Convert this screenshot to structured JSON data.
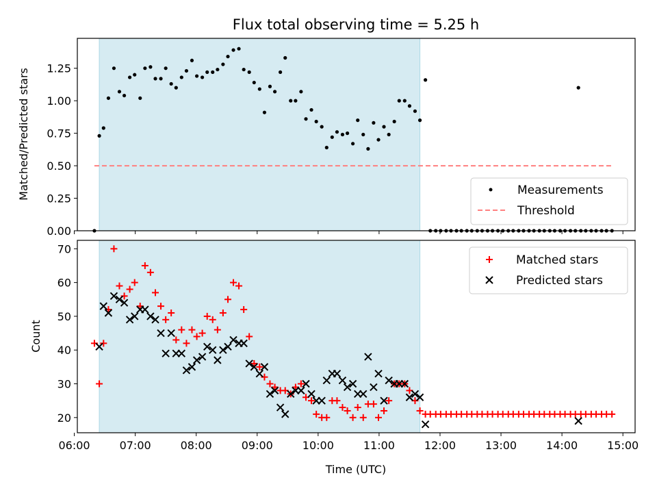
{
  "title": "Flux total observing time = 5.25 h",
  "colors": {
    "shade": "#add8e6",
    "measurement": "#000000",
    "threshold": "#ff7f7f",
    "matched": "#ff0000",
    "predicted": "#000000"
  },
  "chart_data": [
    {
      "type": "scatter",
      "ylabel": "Matched/Predicted stars",
      "xlim": [
        6.05,
        15.2
      ],
      "ylim": [
        0,
        1.48
      ],
      "yticks": [
        0.0,
        0.25,
        0.5,
        0.75,
        1.0,
        1.25
      ],
      "ytick_labels": [
        "0.00",
        "0.25",
        "0.50",
        "0.75",
        "1.00",
        "1.25"
      ],
      "shaded_interval": [
        6.41,
        11.67
      ],
      "legend": {
        "position": "lower right",
        "entries": [
          "Measurements",
          "Threshold"
        ]
      },
      "threshold": {
        "name": "Threshold",
        "y": 0.5,
        "x": [
          6.33,
          14.85
        ]
      },
      "series": [
        {
          "name": "Measurements",
          "x": [
            6.33,
            6.41,
            6.48,
            6.56,
            6.65,
            6.74,
            6.82,
            6.91,
            6.99,
            7.08,
            7.16,
            7.25,
            7.33,
            7.42,
            7.5,
            7.59,
            7.67,
            7.76,
            7.84,
            7.93,
            8.01,
            8.1,
            8.18,
            8.27,
            8.35,
            8.44,
            8.52,
            8.61,
            8.7,
            8.78,
            8.87,
            8.95,
            9.04,
            9.12,
            9.21,
            9.29,
            9.38,
            9.46,
            9.55,
            9.63,
            9.72,
            9.8,
            9.89,
            9.97,
            10.06,
            10.14,
            10.23,
            10.31,
            10.4,
            10.48,
            10.57,
            10.65,
            10.74,
            10.82,
            10.91,
            10.99,
            11.08,
            11.16,
            11.25,
            11.33,
            11.42,
            11.5,
            11.59,
            11.67,
            11.76,
            11.84,
            11.93,
            12.01,
            12.1,
            12.18,
            12.27,
            12.35,
            12.44,
            12.52,
            12.61,
            12.69,
            12.78,
            12.86,
            12.95,
            13.03,
            13.12,
            13.2,
            13.29,
            13.37,
            13.46,
            13.54,
            13.63,
            13.71,
            13.8,
            13.88,
            13.97,
            14.05,
            14.14,
            14.22,
            14.27,
            14.31,
            14.39,
            14.48,
            14.56,
            14.65,
            14.73,
            14.82
          ],
          "y": [
            0.0,
            0.73,
            0.79,
            1.02,
            1.25,
            1.07,
            1.04,
            1.18,
            1.2,
            1.02,
            1.25,
            1.26,
            1.17,
            1.17,
            1.25,
            1.13,
            1.1,
            1.18,
            1.23,
            1.31,
            1.19,
            1.18,
            1.22,
            1.22,
            1.24,
            1.28,
            1.34,
            1.39,
            1.4,
            1.24,
            1.22,
            1.14,
            1.09,
            0.91,
            1.11,
            1.07,
            1.22,
            1.33,
            1.0,
            1.0,
            1.07,
            0.86,
            0.93,
            0.84,
            0.8,
            0.64,
            0.72,
            0.76,
            0.74,
            0.75,
            0.67,
            0.85,
            0.74,
            0.63,
            0.83,
            0.7,
            0.8,
            0.74,
            0.84,
            1.0,
            1.0,
            0.96,
            0.92,
            0.85,
            1.16,
            0.0,
            0.0,
            0.0,
            0.0,
            0.0,
            0.0,
            0.0,
            0.0,
            0.0,
            0.0,
            0.0,
            0.0,
            0.0,
            0.0,
            0.0,
            0.0,
            0.0,
            0.0,
            0.0,
            0.0,
            0.0,
            0.0,
            0.0,
            0.0,
            0.0,
            0.0,
            0.0,
            0.0,
            0.0,
            1.1,
            0.0,
            0.0,
            0.0,
            0.0,
            0.0,
            0.0,
            0.0
          ]
        }
      ]
    },
    {
      "type": "scatter",
      "xlabel": "Time (UTC)",
      "ylabel": "Count",
      "xlim": [
        6.05,
        15.2
      ],
      "ylim": [
        15.5,
        72.5
      ],
      "yticks": [
        20,
        30,
        40,
        50,
        60,
        70
      ],
      "ytick_labels": [
        "20",
        "30",
        "40",
        "50",
        "60",
        "70"
      ],
      "xticks": [
        6,
        7,
        8,
        9,
        10,
        11,
        12,
        13,
        14,
        15
      ],
      "xtick_labels": [
        "06:00",
        "07:00",
        "08:00",
        "09:00",
        "10:00",
        "11:00",
        "12:00",
        "13:00",
        "14:00",
        "15:00"
      ],
      "shaded_interval": [
        6.41,
        11.67
      ],
      "legend": {
        "position": "upper right",
        "entries": [
          "Matched stars",
          "Predicted stars"
        ]
      },
      "series": [
        {
          "name": "Matched stars",
          "marker": "plus",
          "x": [
            6.33,
            6.41,
            6.48,
            6.56,
            6.65,
            6.74,
            6.82,
            6.91,
            6.99,
            7.08,
            7.16,
            7.25,
            7.33,
            7.42,
            7.5,
            7.59,
            7.67,
            7.76,
            7.84,
            7.93,
            8.01,
            8.1,
            8.18,
            8.27,
            8.35,
            8.44,
            8.52,
            8.61,
            8.7,
            8.78,
            8.87,
            8.95,
            9.04,
            9.12,
            9.21,
            9.29,
            9.38,
            9.46,
            9.55,
            9.63,
            9.72,
            9.8,
            9.89,
            9.97,
            10.06,
            10.14,
            10.23,
            10.31,
            10.4,
            10.48,
            10.57,
            10.65,
            10.74,
            10.82,
            10.91,
            10.99,
            11.08,
            11.16,
            11.25,
            11.33,
            11.42,
            11.5,
            11.59,
            11.67,
            11.76,
            11.84,
            11.93,
            12.01,
            12.1,
            12.18,
            12.27,
            12.35,
            12.44,
            12.52,
            12.61,
            12.69,
            12.78,
            12.86,
            12.95,
            13.03,
            13.12,
            13.2,
            13.29,
            13.37,
            13.46,
            13.54,
            13.63,
            13.71,
            13.8,
            13.88,
            13.97,
            14.05,
            14.14,
            14.22,
            14.31,
            14.39,
            14.48,
            14.56,
            14.65,
            14.73,
            14.82
          ],
          "y": [
            42,
            30,
            42,
            52,
            70,
            59,
            56,
            58,
            60,
            53,
            65,
            63,
            57,
            53,
            49,
            51,
            43,
            46,
            42,
            46,
            44,
            45,
            50,
            49,
            46,
            51,
            55,
            60,
            59,
            52,
            44,
            36,
            35,
            32,
            30,
            29,
            28,
            28,
            27,
            29,
            30,
            26,
            25,
            21,
            20,
            20,
            25,
            25,
            23,
            22,
            20,
            23,
            20,
            24,
            24,
            20,
            22,
            25,
            30,
            30,
            30,
            28,
            25,
            22,
            21,
            21,
            21,
            21,
            21,
            21,
            21,
            21,
            21,
            21,
            21,
            21,
            21,
            21,
            21,
            21,
            21,
            21,
            21,
            21,
            21,
            21,
            21,
            21,
            21,
            21,
            21,
            21,
            21,
            21,
            21,
            21,
            21,
            21,
            21,
            21,
            21
          ]
        },
        {
          "name": "Predicted stars",
          "marker": "x",
          "x": [
            6.41,
            6.48,
            6.56,
            6.65,
            6.74,
            6.82,
            6.91,
            6.99,
            7.08,
            7.16,
            7.25,
            7.33,
            7.42,
            7.5,
            7.59,
            7.67,
            7.76,
            7.84,
            7.93,
            8.01,
            8.1,
            8.18,
            8.27,
            8.35,
            8.44,
            8.52,
            8.61,
            8.7,
            8.78,
            8.87,
            8.95,
            9.04,
            9.12,
            9.21,
            9.29,
            9.38,
            9.46,
            9.55,
            9.63,
            9.72,
            9.8,
            9.89,
            9.97,
            10.06,
            10.14,
            10.23,
            10.31,
            10.4,
            10.48,
            10.57,
            10.65,
            10.74,
            10.82,
            10.91,
            10.99,
            11.08,
            11.16,
            11.25,
            11.33,
            11.42,
            11.5,
            11.59,
            11.67,
            11.76,
            14.27
          ],
          "y": [
            41,
            53,
            51,
            56,
            55,
            54,
            49,
            50,
            52,
            52,
            50,
            49,
            45,
            39,
            45,
            39,
            39,
            34,
            35,
            37,
            38,
            41,
            40,
            37,
            40,
            41,
            43,
            42,
            42,
            36,
            35,
            33,
            35,
            27,
            28,
            23,
            21,
            27,
            28,
            28,
            30,
            27,
            25,
            25,
            31,
            33,
            33,
            31,
            29,
            30,
            27,
            27,
            38,
            29,
            33,
            25,
            31,
            30,
            30,
            30,
            26,
            27,
            26,
            18,
            19
          ]
        }
      ]
    }
  ]
}
